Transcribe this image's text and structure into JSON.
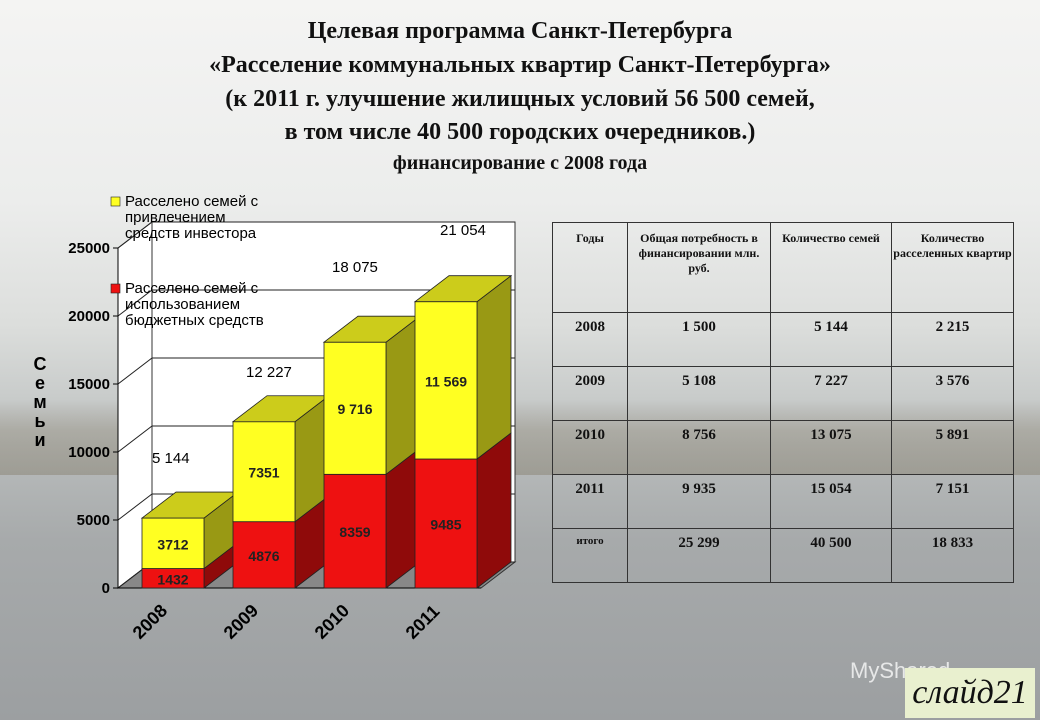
{
  "title": {
    "line1": "Целевая программа Санкт-Петербурга",
    "line2": "«Расселение коммунальных квартир Санкт-Петербурга»",
    "line3": "(к 2011 г. улучшение жилищных условий 56 500 семей,",
    "line4": "в том числе 40 500 городских очередников.)",
    "line5": "финансирование  с 2008 года"
  },
  "chart_data": {
    "type": "bar",
    "stacked": true,
    "categories": [
      "2008",
      "2009",
      "2010",
      "2011"
    ],
    "series": [
      {
        "name": "Расселено семей с использованием бюджетных средств",
        "color": "#ee1111",
        "values": [
          1432,
          4876,
          8359,
          9485
        ],
        "labels": [
          "1432",
          "4876",
          "8359",
          "9485"
        ]
      },
      {
        "name": "Расселено семей с привлечением средств инвестора",
        "color": "#ffff22",
        "values": [
          3712,
          7351,
          9716,
          11569
        ],
        "labels": [
          "3712",
          "7351",
          "9 716",
          "11 569"
        ]
      }
    ],
    "totals": [
      "5 144",
      "12 227",
      "18 075",
      "21 054"
    ],
    "ylabel": "Семьи",
    "ylim": [
      0,
      25000
    ],
    "yticks": [
      "0",
      "5000",
      "10000",
      "15000",
      "20000",
      "25000"
    ],
    "legend": [
      {
        "lines": [
          "Расселено семей с",
          "привлечением",
          "средств инвестора"
        ],
        "color": "#ffff22"
      },
      {
        "lines": [
          "Расселено семей с",
          "использованием",
          "бюджетных средств"
        ],
        "color": "#ee1111"
      }
    ]
  },
  "table": {
    "headers": [
      "Годы",
      "Общая потребность в финансировании млн. руб.",
      "Количество семей",
      "Количество расселенных квартир"
    ],
    "rows": [
      [
        "2008",
        "1 500",
        "5 144",
        "2 215"
      ],
      [
        "2009",
        "5 108",
        "7 227",
        "3 576"
      ],
      [
        "2010",
        "8 756",
        "13 075",
        "5 891"
      ],
      [
        "2011",
        "9 935",
        "15 054",
        "7 151"
      ],
      [
        "итого",
        "25 299",
        "40 500",
        "18 833"
      ]
    ]
  },
  "watermark": "MyShared",
  "slide_label": "слайд21"
}
